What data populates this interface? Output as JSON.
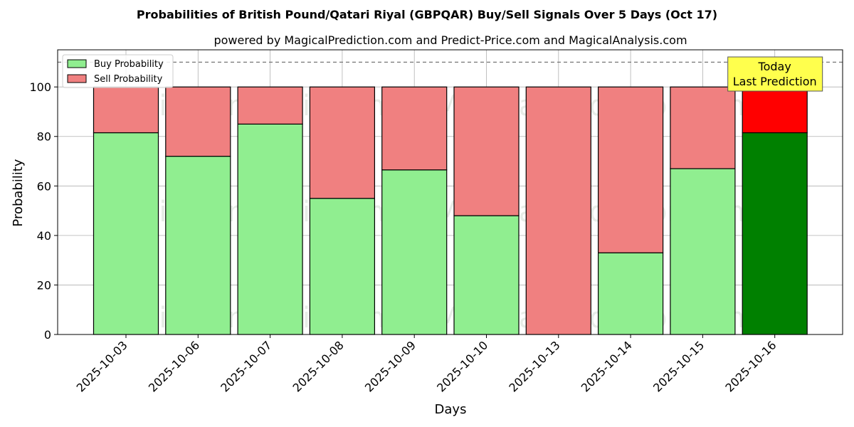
{
  "chart_data": {
    "type": "bar",
    "stacked": true,
    "title": "Probabilities of British Pound/Qatari Riyal (GBPQAR) Buy/Sell Signals Over 5 Days (Oct 17)",
    "subtitle": "powered by MagicalPrediction.com and Predict-Price.com and MagicalAnalysis.com",
    "xlabel": "Days",
    "ylabel": "Probability",
    "ylim": [
      0,
      115
    ],
    "yticks": [
      0,
      20,
      40,
      60,
      80,
      100
    ],
    "reference_line": 110,
    "grid": true,
    "legend_position": "top-left",
    "categories": [
      "2025-10-03",
      "2025-10-06",
      "2025-10-07",
      "2025-10-08",
      "2025-10-09",
      "2025-10-10",
      "2025-10-13",
      "2025-10-14",
      "2025-10-15",
      "2025-10-16"
    ],
    "series": [
      {
        "name": "Buy Probability",
        "color": "#90ee90",
        "highlight_color": "#008000",
        "values": [
          81.5,
          72,
          85,
          55,
          66.5,
          48,
          0,
          33,
          67,
          81.5
        ]
      },
      {
        "name": "Sell Probability",
        "color": "#f08080",
        "highlight_color": "#ff0000",
        "values": [
          18.5,
          28,
          15,
          45,
          33.5,
          52,
          100,
          67,
          33,
          18.5
        ]
      }
    ],
    "highlight_index": 9,
    "annotation": {
      "line1": "Today",
      "line2": "Last Prediction",
      "background": "#ffff4d"
    },
    "watermarks": [
      "MagicalAnalysis.com",
      "MagicalPrediction.com"
    ]
  }
}
